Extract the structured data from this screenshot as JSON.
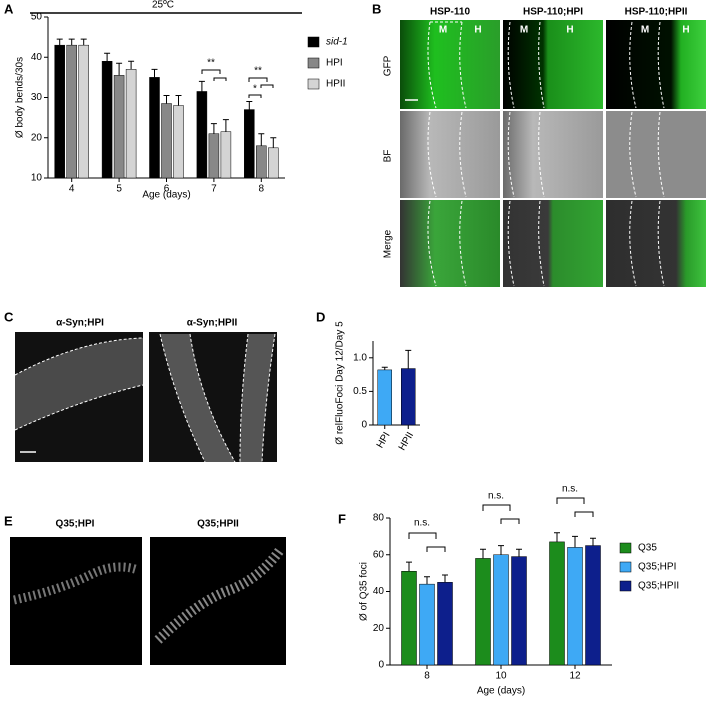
{
  "panel_letters": [
    "A",
    "B",
    "C",
    "D",
    "E",
    "F"
  ],
  "chart_data": [
    {
      "type": "bar",
      "title": "25ºC",
      "ylabel": "Ø body bends/30s",
      "xlabel": "Age (days)",
      "categories": [
        "4",
        "5",
        "6",
        "7",
        "8"
      ],
      "series": [
        {
          "name": "sid-1",
          "color": "#000000",
          "values": [
            43,
            39,
            35,
            31.5,
            27
          ],
          "errors": [
            1.5,
            2,
            2,
            2.5,
            2
          ]
        },
        {
          "name": "HPI",
          "color": "#888888",
          "values": [
            43,
            35.5,
            28.5,
            21,
            18
          ],
          "errors": [
            1.5,
            3,
            2,
            2.5,
            3
          ]
        },
        {
          "name": "HPII",
          "color": "#d4d4d4",
          "values": [
            43,
            37,
            28,
            21.5,
            17.5
          ],
          "errors": [
            1.5,
            2,
            2.5,
            3,
            2.5
          ]
        }
      ],
      "ylim": [
        10,
        50
      ],
      "yticks": [
        10,
        20,
        30,
        40,
        50
      ],
      "annotations": [
        "**",
        "**",
        "*"
      ]
    },
    {
      "type": "bar",
      "ylabel": "Ø relFluoFoci Day 12/Day 5",
      "categories": [
        "HPI",
        "HPII"
      ],
      "values": [
        0.82,
        0.84
      ],
      "errors": [
        0.04,
        0.27
      ],
      "colors": [
        "#3ea9f5",
        "#0d1f8c"
      ],
      "ylim": [
        0,
        1.25
      ],
      "yticks": [
        0,
        0.5,
        {
          "value": 1,
          "label": "1.0"
        }
      ]
    },
    {
      "type": "bar",
      "ylabel": "Ø of Q35 foci",
      "xlabel": "Age (days)",
      "categories": [
        "8",
        "10",
        "12"
      ],
      "series": [
        {
          "name": "Q35",
          "color": "#1c8c1c",
          "values": [
            51,
            58,
            67
          ],
          "errors": [
            5,
            5,
            5
          ]
        },
        {
          "name": "Q35;HPI",
          "color": "#3ea9f5",
          "values": [
            44,
            60,
            64
          ],
          "errors": [
            4,
            5,
            6
          ]
        },
        {
          "name": "Q35;HPII",
          "color": "#0d1f8c",
          "values": [
            45,
            59,
            65
          ],
          "errors": [
            4,
            4,
            4
          ]
        }
      ],
      "ylim": [
        0,
        80
      ],
      "yticks": [
        0,
        20,
        40,
        60,
        80
      ],
      "annotations": [
        "n.s.",
        "n.s.",
        "n.s."
      ]
    }
  ],
  "panel_b": {
    "columns": [
      "HSP-110",
      "HSP-110;HPI",
      "HSP-110;HPII"
    ],
    "rows": [
      "GFP",
      "BF",
      "Merge"
    ],
    "region_labels": [
      "M",
      "H"
    ]
  },
  "panel_c": {
    "columns": [
      "α-Syn;HPI",
      "α-Syn;HPII"
    ]
  },
  "panel_e": {
    "columns": [
      "Q35;HPI",
      "Q35;HPII"
    ]
  }
}
